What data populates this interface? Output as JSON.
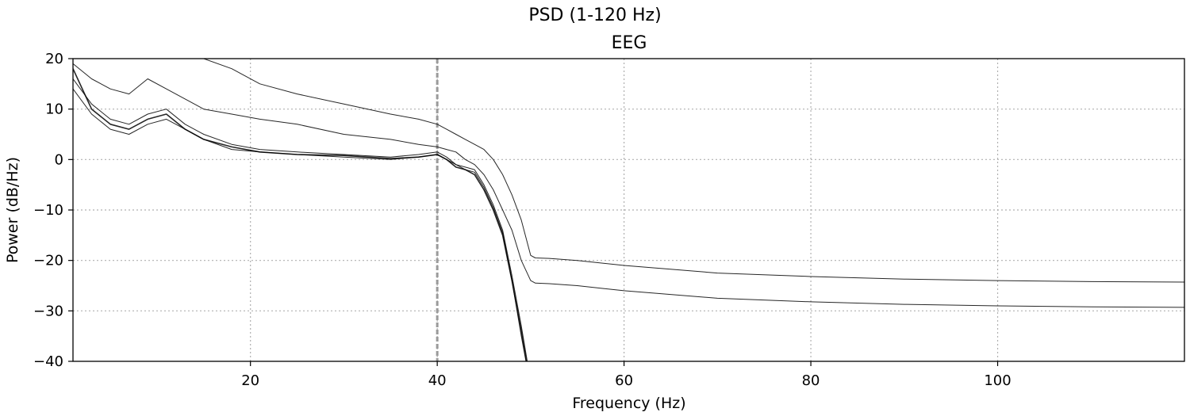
{
  "chart_data": {
    "type": "line",
    "suptitle": "PSD (1-120 Hz)",
    "title": "EEG",
    "xlabel": "Frequency (Hz)",
    "ylabel": "Power (dB/Hz)",
    "xlim": [
      1,
      120
    ],
    "ylim": [
      -40,
      20
    ],
    "xticks": [
      20,
      40,
      60,
      80,
      100
    ],
    "yticks": [
      20,
      10,
      0,
      -10,
      -20,
      -30,
      -40
    ],
    "grid": true,
    "vline": 40,
    "series": [
      {
        "x": [
          1,
          3,
          5,
          7,
          9,
          11,
          13,
          15,
          18,
          21,
          25,
          30,
          35,
          38,
          40,
          41,
          42,
          43,
          44,
          45,
          46,
          47,
          48,
          49,
          50,
          52,
          55,
          60,
          70,
          80,
          90,
          100,
          110,
          120
        ],
        "y": [
          18,
          10,
          7,
          6,
          8,
          9,
          6,
          4,
          2.5,
          1.5,
          1,
          0.8,
          0.2,
          0.5,
          1,
          0,
          -1.5,
          -2,
          -3,
          -6,
          -10,
          -15,
          -24,
          -34,
          -45,
          -45,
          -45,
          -45,
          -45,
          -45,
          -45,
          -45,
          -45,
          -45
        ],
        "width": 1.6
      },
      {
        "x": [
          1,
          3,
          5,
          7,
          9,
          11,
          13,
          15,
          18,
          21,
          25,
          30,
          35,
          38,
          40,
          41,
          42,
          43,
          44,
          45,
          46,
          47,
          48,
          49,
          50,
          52,
          55,
          60,
          70,
          80,
          90,
          100,
          110,
          120
        ],
        "y": [
          16,
          11,
          8,
          7,
          9,
          10,
          7,
          5,
          3,
          2,
          1.5,
          1,
          0.5,
          1,
          1.5,
          0.5,
          -1,
          -1.5,
          -2,
          -5,
          -9,
          -14,
          -23,
          -33,
          -44,
          -45,
          -45,
          -45,
          -45,
          -45,
          -45,
          -45,
          -45,
          -45
        ],
        "width": 1.0
      },
      {
        "x": [
          1,
          3,
          5,
          7,
          9,
          11,
          13,
          15,
          18,
          21,
          25,
          30,
          35,
          38,
          40,
          41,
          42,
          43,
          44,
          45,
          46,
          47,
          48,
          49,
          50,
          52,
          55,
          60,
          70,
          80,
          90,
          100,
          110,
          120
        ],
        "y": [
          14,
          9,
          6,
          5,
          7,
          8,
          6,
          4,
          2,
          1.5,
          1,
          0.5,
          0,
          0.5,
          1,
          0,
          -1,
          -2,
          -2.5,
          -5.5,
          -9.5,
          -14.5,
          -24,
          -35,
          -45,
          -45,
          -45,
          -45,
          -45,
          -45,
          -45,
          -45,
          -45,
          -45
        ],
        "width": 1.0
      },
      {
        "x": [
          1,
          3,
          5,
          7,
          9,
          11,
          13,
          15,
          18,
          21,
          25,
          30,
          35,
          38,
          40,
          41,
          42,
          43,
          44,
          45,
          46,
          47,
          48,
          49,
          50,
          50.5,
          52,
          55,
          60,
          70,
          80,
          90,
          100,
          110,
          120
        ],
        "y": [
          19,
          16,
          14,
          13,
          16,
          14,
          12,
          10,
          9,
          8,
          7,
          5,
          4,
          3,
          2.5,
          2,
          1.5,
          0,
          -1,
          -3,
          -6,
          -10,
          -14,
          -20,
          -24,
          -24.5,
          -24.6,
          -25,
          -26,
          -27.5,
          -28.2,
          -28.7,
          -29,
          -29.2,
          -29.3
        ],
        "width": 1.0
      },
      {
        "x": [
          1,
          3,
          5,
          7,
          9,
          11,
          13,
          15,
          18,
          21,
          25,
          30,
          35,
          38,
          40,
          41,
          42,
          43,
          44,
          45,
          46,
          47,
          48,
          49,
          50,
          50.5,
          52,
          55,
          60,
          70,
          80,
          90,
          100,
          110,
          120
        ],
        "y": [
          20,
          22,
          24,
          26,
          25,
          24,
          22,
          20,
          18,
          15,
          13,
          11,
          9,
          8,
          7,
          6,
          5,
          4,
          3,
          2,
          0,
          -3,
          -7,
          -12,
          -19,
          -19.5,
          -19.6,
          -20,
          -21,
          -22.5,
          -23.2,
          -23.7,
          -24,
          -24.2,
          -24.3
        ],
        "width": 1.0
      }
    ]
  }
}
